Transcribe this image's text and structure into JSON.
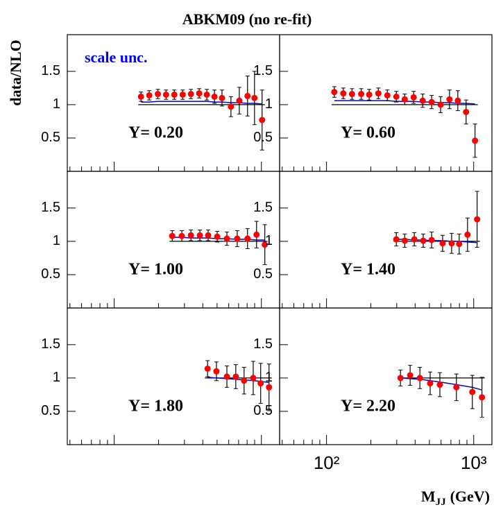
{
  "chart_data": {
    "type": "scatter",
    "title": "ABKM09 (no re-fit)",
    "ylabel": "data/NLO",
    "xlabel": "M",
    "xlabel_sub": "JJ",
    "xlabel_unit": "(GeV)",
    "annotation": "scale unc.",
    "annotation_color": "#0000ff",
    "log_x": true,
    "xlim": [
      48,
      1330
    ],
    "ylim": [
      0,
      2.05
    ],
    "xticks": [
      {
        "value": 100,
        "label": "10²"
      },
      {
        "value": 1000,
        "label": "10³"
      }
    ],
    "xminorticks": [
      50,
      60,
      70,
      80,
      90,
      200,
      300,
      400,
      500,
      600,
      700,
      800,
      900
    ],
    "yticks": [
      0.5,
      1,
      1.5
    ],
    "marker_color": "#ff0000",
    "theory_color": "#0000cc",
    "reference": 1,
    "panels": [
      {
        "label": "Y= 0.20",
        "x": [
          152,
          173,
          198,
          225,
          256,
          292,
          332,
          378,
          426,
          480,
          540,
          621,
          708,
          805,
          898,
          1011
        ],
        "values": [
          1.12,
          1.14,
          1.16,
          1.15,
          1.15,
          1.15,
          1.16,
          1.17,
          1.15,
          1.12,
          1.1,
          0.97,
          1.06,
          1.13,
          1.1,
          0.77
        ],
        "errors": [
          0.07,
          0.07,
          0.07,
          0.07,
          0.07,
          0.07,
          0.07,
          0.07,
          0.08,
          0.1,
          0.12,
          0.15,
          0.2,
          0.3,
          0.4,
          0.45
        ],
        "theory": [
          1.04,
          1.04,
          1.05,
          1.05,
          1.05,
          1.05,
          1.05,
          1.05,
          1.05,
          1.04,
          1.04,
          1.03,
          1.03,
          1.02,
          1.02,
          1.01
        ]
      },
      {
        "label": "Y= 0.60",
        "x": [
          113,
          130,
          149,
          172,
          195,
          225,
          259,
          298,
          340,
          391,
          450,
          518,
          596,
          685,
          780,
          888,
          1021
        ],
        "values": [
          1.19,
          1.17,
          1.16,
          1.16,
          1.15,
          1.17,
          1.14,
          1.12,
          1.08,
          1.11,
          1.06,
          1.04,
          1.0,
          1.08,
          1.06,
          0.89,
          0.46
        ],
        "errors": [
          0.08,
          0.08,
          0.08,
          0.08,
          0.08,
          0.08,
          0.08,
          0.08,
          0.08,
          0.09,
          0.1,
          0.1,
          0.12,
          0.14,
          0.15,
          0.18,
          0.25
        ],
        "theory": [
          1.06,
          1.06,
          1.06,
          1.06,
          1.06,
          1.06,
          1.06,
          1.05,
          1.05,
          1.05,
          1.04,
          1.04,
          1.03,
          1.03,
          1.02,
          1.02,
          1.01
        ]
      },
      {
        "label": "Y= 1.00",
        "x": [
          248,
          288,
          332,
          382,
          435,
          501,
          583,
          685,
          805,
          927,
          1055
        ],
        "values": [
          1.08,
          1.08,
          1.09,
          1.09,
          1.09,
          1.07,
          1.04,
          1.04,
          1.04,
          1.1,
          0.95
        ],
        "errors": [
          0.08,
          0.08,
          0.08,
          0.08,
          0.08,
          0.08,
          0.1,
          0.12,
          0.15,
          0.2,
          0.3
        ],
        "theory": [
          1.06,
          1.06,
          1.05,
          1.05,
          1.05,
          1.04,
          1.04,
          1.03,
          1.03,
          1.02,
          1.02
        ]
      },
      {
        "label": "Y= 1.40",
        "x": [
          298,
          340,
          395,
          454,
          518,
          615,
          708,
          797,
          908,
          1055
        ],
        "values": [
          1.03,
          1.01,
          1.03,
          1.01,
          1.02,
          0.97,
          0.97,
          0.96,
          1.1,
          1.33
        ],
        "errors": [
          0.1,
          0.1,
          0.1,
          0.1,
          0.12,
          0.12,
          0.15,
          0.15,
          0.25,
          0.42
        ],
        "theory": [
          1.03,
          1.03,
          1.02,
          1.02,
          1.01,
          1.01,
          1.0,
          1.0,
          0.99,
          0.98
        ]
      },
      {
        "label": "Y= 1.80",
        "x": [
          431,
          495,
          583,
          670,
          763,
          880,
          989,
          1127
        ],
        "values": [
          1.14,
          1.1,
          1.02,
          1.02,
          0.96,
          1.0,
          0.92,
          0.86
        ],
        "errors": [
          0.12,
          0.14,
          0.16,
          0.18,
          0.2,
          0.25,
          0.3,
          0.35
        ],
        "theory": [
          1.01,
          1.0,
          0.99,
          0.98,
          0.97,
          0.96,
          0.95,
          0.93
        ]
      },
      {
        "label": "Y= 2.20",
        "x": [
          318,
          370,
          431,
          506,
          589,
          763,
          979,
          1138
        ],
        "values": [
          1.0,
          1.04,
          1.0,
          0.92,
          0.9,
          0.86,
          0.79,
          0.71
        ],
        "errors": [
          0.12,
          0.15,
          0.16,
          0.17,
          0.18,
          0.2,
          0.25,
          0.3
        ],
        "theory": [
          1.0,
          0.99,
          0.98,
          0.96,
          0.94,
          0.9,
          0.86,
          0.82
        ]
      }
    ]
  }
}
